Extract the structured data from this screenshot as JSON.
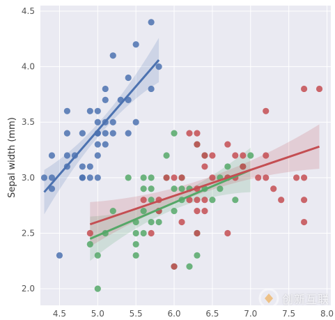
{
  "chart_data": {
    "type": "scatter",
    "title": "",
    "xlabel": "",
    "ylabel": "Sepal width (mm)",
    "xlim": [
      4.25,
      8.05
    ],
    "ylim": [
      1.85,
      4.55
    ],
    "x_ticks": [
      4.5,
      5.0,
      5.5,
      6.0,
      6.5,
      7.0,
      7.5,
      8.0
    ],
    "y_ticks": [
      2.0,
      2.5,
      3.0,
      3.5,
      4.0,
      4.5
    ],
    "x_tick_labels": [
      "4.5",
      "5.0",
      "5.5",
      "6.0",
      "6.5",
      "7.0",
      "7.5",
      "8.0"
    ],
    "y_tick_labels": [
      "2.0",
      "2.5",
      "3.0",
      "3.5",
      "4.0",
      "4.5"
    ],
    "grid": true,
    "background": "#eaeaf2",
    "series": [
      {
        "color": "#4c72b0",
        "points": [
          [
            4.3,
            3.0
          ],
          [
            4.4,
            2.9
          ],
          [
            4.4,
            3.0
          ],
          [
            4.4,
            3.2
          ],
          [
            4.5,
            2.3
          ],
          [
            4.6,
            3.1
          ],
          [
            4.6,
            3.2
          ],
          [
            4.6,
            3.4
          ],
          [
            4.6,
            3.6
          ],
          [
            4.7,
            3.2
          ],
          [
            4.8,
            3.0
          ],
          [
            4.8,
            3.1
          ],
          [
            4.8,
            3.4
          ],
          [
            4.9,
            3.0
          ],
          [
            4.9,
            3.1
          ],
          [
            4.9,
            3.6
          ],
          [
            5.0,
            3.0
          ],
          [
            5.0,
            3.2
          ],
          [
            5.0,
            3.3
          ],
          [
            5.0,
            3.4
          ],
          [
            5.0,
            3.5
          ],
          [
            5.0,
            3.6
          ],
          [
            5.1,
            3.3
          ],
          [
            5.1,
            3.4
          ],
          [
            5.1,
            3.5
          ],
          [
            5.1,
            3.7
          ],
          [
            5.1,
            3.8
          ],
          [
            5.2,
            3.4
          ],
          [
            5.2,
            3.5
          ],
          [
            5.2,
            4.1
          ],
          [
            5.3,
            3.7
          ],
          [
            5.4,
            3.4
          ],
          [
            5.4,
            3.7
          ],
          [
            5.4,
            3.9
          ],
          [
            5.5,
            3.5
          ],
          [
            5.5,
            4.2
          ],
          [
            5.7,
            3.8
          ],
          [
            5.7,
            4.4
          ],
          [
            5.8,
            4.0
          ],
          [
            4.8,
            3.0
          ],
          [
            5.0,
            3.4
          ]
        ],
        "fit": {
          "x": [
            4.3,
            5.8
          ],
          "y": [
            2.87,
            4.06
          ]
        }
      },
      {
        "color": "#55a868",
        "points": [
          [
            4.9,
            2.4
          ],
          [
            5.0,
            2.0
          ],
          [
            5.0,
            2.3
          ],
          [
            5.1,
            2.5
          ],
          [
            5.2,
            2.7
          ],
          [
            5.4,
            3.0
          ],
          [
            5.5,
            2.3
          ],
          [
            5.5,
            2.4
          ],
          [
            5.5,
            2.5
          ],
          [
            5.5,
            2.6
          ],
          [
            5.6,
            2.5
          ],
          [
            5.6,
            2.7
          ],
          [
            5.6,
            2.9
          ],
          [
            5.6,
            3.0
          ],
          [
            5.7,
            2.6
          ],
          [
            5.7,
            2.8
          ],
          [
            5.7,
            2.9
          ],
          [
            5.7,
            3.0
          ],
          [
            5.8,
            2.6
          ],
          [
            5.8,
            2.7
          ],
          [
            5.9,
            3.0
          ],
          [
            5.9,
            3.2
          ],
          [
            6.0,
            2.2
          ],
          [
            6.0,
            2.7
          ],
          [
            6.0,
            2.9
          ],
          [
            6.0,
            3.4
          ],
          [
            6.1,
            2.8
          ],
          [
            6.1,
            2.9
          ],
          [
            6.1,
            3.0
          ],
          [
            6.2,
            2.2
          ],
          [
            6.2,
            2.9
          ],
          [
            6.3,
            2.3
          ],
          [
            6.3,
            2.5
          ],
          [
            6.3,
            3.3
          ],
          [
            6.4,
            2.9
          ],
          [
            6.4,
            3.2
          ],
          [
            6.5,
            2.8
          ],
          [
            6.6,
            2.9
          ],
          [
            6.6,
            3.0
          ],
          [
            6.7,
            3.0
          ],
          [
            6.7,
            3.1
          ],
          [
            6.8,
            2.8
          ],
          [
            6.9,
            3.1
          ],
          [
            7.0,
            3.2
          ]
        ],
        "fit": {
          "x": [
            4.9,
            7.0
          ],
          "y": [
            2.45,
            3.07
          ]
        }
      },
      {
        "color": "#c44e52",
        "points": [
          [
            4.9,
            2.5
          ],
          [
            5.6,
            2.8
          ],
          [
            5.7,
            2.5
          ],
          [
            5.8,
            2.7
          ],
          [
            5.8,
            2.8
          ],
          [
            5.9,
            3.0
          ],
          [
            6.0,
            2.2
          ],
          [
            6.0,
            3.0
          ],
          [
            6.1,
            2.6
          ],
          [
            6.1,
            3.0
          ],
          [
            6.2,
            2.8
          ],
          [
            6.2,
            3.4
          ],
          [
            6.3,
            2.5
          ],
          [
            6.3,
            2.7
          ],
          [
            6.3,
            2.8
          ],
          [
            6.3,
            2.9
          ],
          [
            6.3,
            3.3
          ],
          [
            6.3,
            3.4
          ],
          [
            6.4,
            2.7
          ],
          [
            6.4,
            2.8
          ],
          [
            6.4,
            3.1
          ],
          [
            6.4,
            3.2
          ],
          [
            6.5,
            3.0
          ],
          [
            6.5,
            3.2
          ],
          [
            6.7,
            2.5
          ],
          [
            6.7,
            3.0
          ],
          [
            6.7,
            3.3
          ],
          [
            6.8,
            3.0
          ],
          [
            6.8,
            3.2
          ],
          [
            6.9,
            3.1
          ],
          [
            6.9,
            3.2
          ],
          [
            7.1,
            3.0
          ],
          [
            7.2,
            3.0
          ],
          [
            7.2,
            3.2
          ],
          [
            7.2,
            3.6
          ],
          [
            7.3,
            2.9
          ],
          [
            7.4,
            2.8
          ],
          [
            7.6,
            3.0
          ],
          [
            7.7,
            2.6
          ],
          [
            7.7,
            2.8
          ],
          [
            7.7,
            3.0
          ],
          [
            7.7,
            3.8
          ],
          [
            7.9,
            3.8
          ]
        ],
        "fit": {
          "x": [
            4.9,
            7.9
          ],
          "y": [
            2.58,
            3.28
          ]
        }
      }
    ]
  },
  "watermark": {
    "text": "创新互联"
  }
}
